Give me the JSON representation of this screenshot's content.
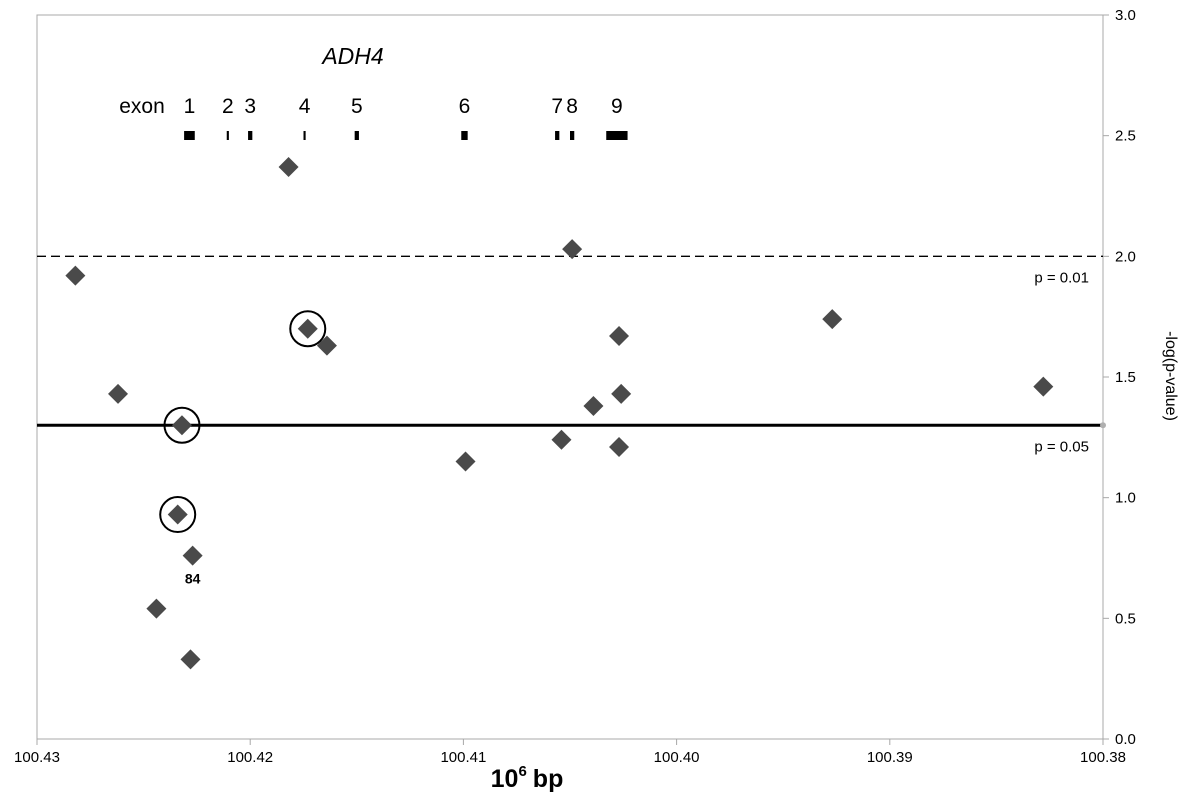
{
  "chart_data": {
    "type": "scatter",
    "title": "ADH4",
    "xlabel": "bp",
    "xlabel_prefix": "10",
    "xlabel_sup": "6",
    "ylabel": "-log(p-value)",
    "xlim": [
      100.43,
      100.38
    ],
    "ylim": [
      0.0,
      3.0
    ],
    "x_reversed": true,
    "x_ticks": [
      "100.43",
      "100.42",
      "100.41",
      "100.40",
      "100.39",
      "100.38"
    ],
    "y_ticks": [
      "0.0",
      "0.5",
      "1.0",
      "1.5",
      "2.0",
      "2.5",
      "3.0"
    ],
    "x_tick_values": [
      100.43,
      100.42,
      100.41,
      100.4,
      100.39,
      100.38
    ],
    "y_tick_values": [
      0.0,
      0.5,
      1.0,
      1.5,
      2.0,
      2.5,
      3.0
    ],
    "marker_color": "#4a4a4a",
    "points": [
      {
        "x": 100.4282,
        "y": 1.92
      },
      {
        "x": 100.4182,
        "y": 2.37
      },
      {
        "x": 100.4262,
        "y": 1.43
      },
      {
        "x": 100.4232,
        "y": 1.3,
        "circled": true
      },
      {
        "x": 100.4234,
        "y": 0.93,
        "circled": true
      },
      {
        "x": 100.4227,
        "y": 0.76,
        "label": "84"
      },
      {
        "x": 100.4244,
        "y": 0.54
      },
      {
        "x": 100.4228,
        "y": 0.33
      },
      {
        "x": 100.4173,
        "y": 1.7,
        "circled": true
      },
      {
        "x": 100.4164,
        "y": 1.63
      },
      {
        "x": 100.4099,
        "y": 1.15
      },
      {
        "x": 100.4054,
        "y": 1.24
      },
      {
        "x": 100.4049,
        "y": 2.03
      },
      {
        "x": 100.4039,
        "y": 1.38
      },
      {
        "x": 100.4027,
        "y": 1.67
      },
      {
        "x": 100.4026,
        "y": 1.43
      },
      {
        "x": 100.4027,
        "y": 1.21
      },
      {
        "x": 100.3927,
        "y": 1.74
      },
      {
        "x": 100.3828,
        "y": 1.46
      }
    ],
    "reference_lines": [
      {
        "y": 2.0,
        "style": "dashed",
        "label": "p = 0.01"
      },
      {
        "y": 1.3,
        "style": "solid",
        "label": "p = 0.05"
      }
    ],
    "exon_prefix": "exon",
    "exons": [
      {
        "label": "1",
        "start": 100.4231,
        "end": 100.4226
      },
      {
        "label": "2",
        "start": 100.4211,
        "end": 100.421
      },
      {
        "label": "3",
        "start": 100.4201,
        "end": 100.4199
      },
      {
        "label": "4",
        "start": 100.4175,
        "end": 100.4174
      },
      {
        "label": "5",
        "start": 100.4151,
        "end": 100.4149
      },
      {
        "label": "6",
        "start": 100.4101,
        "end": 100.4098
      },
      {
        "label": "7",
        "start": 100.4057,
        "end": 100.4055
      },
      {
        "label": "8",
        "start": 100.405,
        "end": 100.4048
      },
      {
        "label": "9",
        "start": 100.4033,
        "end": 100.4023
      }
    ]
  }
}
